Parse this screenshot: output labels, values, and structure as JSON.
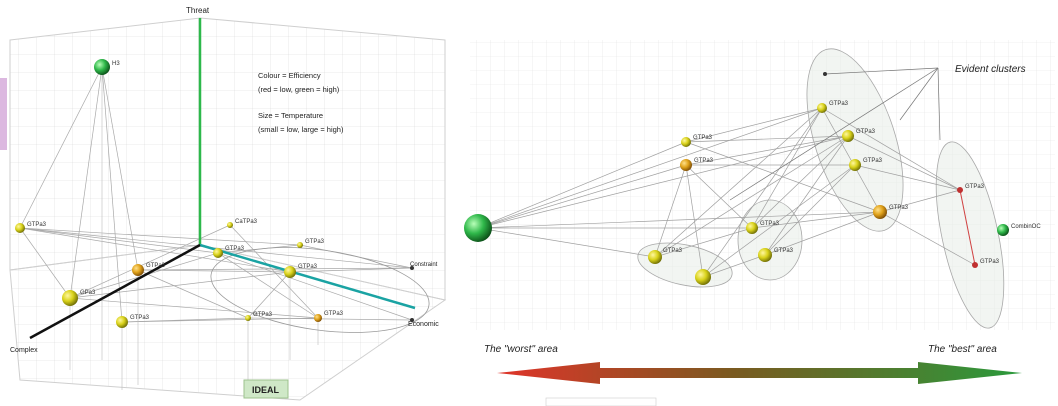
{
  "left_plot": {
    "axes": {
      "vertical": "Threat",
      "left": "Complex",
      "right": "Economic"
    },
    "legend": {
      "line1": "Colour = Efficiency",
      "line2": "(red = low, green = high)",
      "line3": "Size = Temperature",
      "line4": "(small = low, large = high)"
    },
    "ideal_label": "IDEAL",
    "side_label": "Constraint",
    "node_labels": {
      "top": "H3",
      "n1": "GTPa3",
      "n2": "CaTPa3",
      "n3": "GTPa3",
      "n4": "GTPa3",
      "n5": "GPa3",
      "n6": "GTPa3",
      "n7": "GTPa3",
      "n8": "GTPa3",
      "n9": "GTPa3",
      "n10": "GTPa3"
    },
    "colors": {
      "vertical_axis": "#2db84b",
      "right_axis": "#1aa3a3",
      "left_axis": "#111111"
    }
  },
  "right_plot": {
    "cluster_label": "Evident clusters",
    "worst_label": "The \"worst\" area",
    "best_label": "The \"best\" area",
    "node_labels": {
      "a": "GTPa3",
      "b": "GTPa3",
      "c": "GTPa3",
      "d": "GTPa3",
      "e": "GTPa3",
      "f": "GTPa3",
      "g": "GTPa3",
      "h": "GTPa3",
      "i": "GTPa3",
      "j": "GTPa3",
      "k": "CombinOC",
      "l": "GTPa3"
    },
    "colors": {
      "arrow_left": "#e0342a",
      "arrow_mid": "#7a5a20",
      "arrow_right": "#2a9a3c"
    }
  }
}
